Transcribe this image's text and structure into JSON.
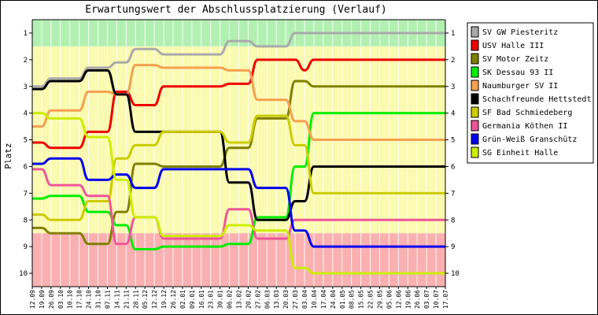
{
  "chart_data": {
    "type": "line",
    "title": "Erwartungswert der Abschlussplatzierung (Verlauf)",
    "ylabel": "Platz",
    "ylim": [
      10,
      1
    ],
    "yticks": [
      "1",
      "2",
      "3",
      "4",
      "5",
      "6",
      "7",
      "8",
      "9",
      "10"
    ],
    "zones": [
      {
        "from": 0.5,
        "to": 1.5,
        "color": "#b2f0b2"
      },
      {
        "from": 1.5,
        "to": 8.5,
        "color": "#fafab0"
      },
      {
        "from": 8.5,
        "to": 10.5,
        "color": "#fab0b0"
      }
    ],
    "x": [
      "12.09",
      "19.09",
      "26.09",
      "03.10",
      "10.10",
      "17.10",
      "24.10",
      "31.10",
      "07.11",
      "14.11",
      "21.11",
      "28.11",
      "05.12",
      "12.12",
      "19.12",
      "26.12",
      "02.01",
      "09.01",
      "16.01",
      "23.01",
      "30.01",
      "06.02",
      "13.02",
      "20.02",
      "27.02",
      "06.03",
      "13.03",
      "20.03",
      "27.03",
      "03.04",
      "10.04",
      "17.04",
      "24.04",
      "01.05",
      "08.05",
      "15.05",
      "22.05",
      "29.05",
      "05.06",
      "12.06",
      "19.06",
      "26.06",
      "03.07",
      "10.07",
      "17.07"
    ],
    "series": [
      {
        "name": "SV GW Piesteritz",
        "color": "#aaaaaa",
        "values": [
          3.0,
          3.0,
          2.7,
          2.7,
          2.7,
          2.7,
          2.3,
          2.3,
          2.3,
          2.1,
          2.1,
          1.6,
          1.6,
          1.6,
          1.8,
          1.8,
          1.8,
          1.8,
          1.8,
          1.8,
          1.8,
          1.3,
          1.3,
          1.3,
          1.5,
          1.5,
          1.5,
          1.5,
          1.0,
          1.0,
          1.0,
          1.0,
          1.0,
          1.0,
          1.0,
          1.0,
          1.0,
          1.0,
          1.0,
          1.0,
          1.0,
          1.0,
          1.0,
          1.0,
          1.0
        ]
      },
      {
        "name": "USV Halle III",
        "color": "#ee0000",
        "values": [
          5.1,
          5.1,
          5.3,
          5.3,
          5.3,
          5.3,
          4.7,
          4.7,
          4.7,
          3.2,
          3.2,
          3.7,
          3.7,
          3.7,
          3.0,
          3.0,
          3.0,
          3.0,
          3.0,
          3.0,
          3.0,
          2.9,
          2.9,
          2.9,
          2.0,
          2.0,
          2.0,
          2.0,
          2.0,
          2.4,
          2.0,
          2.0,
          2.0,
          2.0,
          2.0,
          2.0,
          2.0,
          2.0,
          2.0,
          2.0,
          2.0,
          2.0,
          2.0,
          2.0,
          2.0
        ]
      },
      {
        "name": "SV Motor Zeitz",
        "color": "#808000",
        "values": [
          8.3,
          8.3,
          8.5,
          8.5,
          8.5,
          8.5,
          8.9,
          8.9,
          8.9,
          7.7,
          7.7,
          5.9,
          5.9,
          5.9,
          6.0,
          6.0,
          6.0,
          6.0,
          6.0,
          6.0,
          6.0,
          5.3,
          5.3,
          5.3,
          4.2,
          4.2,
          4.2,
          4.2,
          2.8,
          2.8,
          3.0,
          3.0,
          3.0,
          3.0,
          3.0,
          3.0,
          3.0,
          3.0,
          3.0,
          3.0,
          3.0,
          3.0,
          3.0,
          3.0,
          3.0
        ]
      },
      {
        "name": "SK Dessau 93 II",
        "color": "#00ee00",
        "values": [
          7.2,
          7.2,
          7.1,
          7.1,
          7.1,
          7.1,
          7.7,
          7.7,
          7.7,
          8.2,
          8.2,
          9.1,
          9.1,
          9.1,
          9.0,
          9.0,
          9.0,
          9.0,
          9.0,
          9.0,
          9.0,
          8.9,
          8.9,
          8.9,
          7.9,
          7.9,
          7.9,
          7.9,
          6.0,
          6.0,
          4.0,
          4.0,
          4.0,
          4.0,
          4.0,
          4.0,
          4.0,
          4.0,
          4.0,
          4.0,
          4.0,
          4.0,
          4.0,
          4.0,
          4.0
        ]
      },
      {
        "name": "Naumburger SV II",
        "color": "#f5a050",
        "values": [
          4.5,
          4.5,
          3.9,
          3.9,
          3.9,
          3.9,
          3.2,
          3.2,
          3.2,
          3.3,
          3.3,
          2.2,
          2.2,
          2.2,
          2.3,
          2.3,
          2.3,
          2.3,
          2.3,
          2.3,
          2.3,
          2.4,
          2.4,
          2.4,
          3.5,
          3.5,
          3.5,
          3.5,
          4.3,
          4.3,
          5.0,
          5.0,
          5.0,
          5.0,
          5.0,
          5.0,
          5.0,
          5.0,
          5.0,
          5.0,
          5.0,
          5.0,
          5.0,
          5.0,
          5.0
        ]
      },
      {
        "name": "Schachfreunde Hettstedt",
        "color": "#000000",
        "values": [
          3.1,
          3.1,
          2.8,
          2.8,
          2.8,
          2.8,
          2.4,
          2.4,
          2.4,
          3.3,
          3.3,
          4.7,
          4.7,
          4.7,
          4.7,
          4.7,
          4.7,
          4.7,
          4.7,
          4.7,
          4.7,
          6.6,
          6.6,
          6.6,
          8.0,
          8.0,
          8.0,
          8.0,
          7.3,
          7.3,
          6.0,
          6.0,
          6.0,
          6.0,
          6.0,
          6.0,
          6.0,
          6.0,
          6.0,
          6.0,
          6.0,
          6.0,
          6.0,
          6.0,
          6.0
        ]
      },
      {
        "name": "SF Bad Schmiedeberg",
        "color": "#cccc00",
        "values": [
          7.8,
          7.8,
          8.0,
          8.0,
          8.0,
          8.0,
          7.3,
          7.3,
          7.3,
          5.7,
          5.7,
          5.2,
          5.2,
          5.2,
          4.7,
          4.7,
          4.7,
          4.7,
          4.7,
          4.7,
          4.7,
          5.1,
          5.1,
          5.1,
          4.1,
          4.1,
          4.1,
          4.1,
          5.2,
          5.2,
          7.0,
          7.0,
          7.0,
          7.0,
          7.0,
          7.0,
          7.0,
          7.0,
          7.0,
          7.0,
          7.0,
          7.0,
          7.0,
          7.0,
          7.0
        ]
      },
      {
        "name": "Germania Köthen II",
        "color": "#ee5599",
        "values": [
          6.1,
          6.1,
          6.7,
          6.7,
          6.7,
          6.7,
          7.1,
          7.1,
          7.1,
          8.9,
          8.9,
          7.9,
          7.9,
          7.9,
          8.7,
          8.7,
          8.7,
          8.7,
          8.7,
          8.7,
          8.7,
          7.6,
          7.6,
          7.6,
          8.7,
          8.7,
          8.7,
          8.7,
          8.0,
          8.0,
          8.0,
          8.0,
          8.0,
          8.0,
          8.0,
          8.0,
          8.0,
          8.0,
          8.0,
          8.0,
          8.0,
          8.0,
          8.0,
          8.0,
          8.0
        ]
      },
      {
        "name": "Grün-Weiß Granschütz",
        "color": "#0000ee",
        "values": [
          5.9,
          5.9,
          5.7,
          5.7,
          5.7,
          5.7,
          6.5,
          6.5,
          6.5,
          6.3,
          6.3,
          6.8,
          6.8,
          6.8,
          6.1,
          6.1,
          6.1,
          6.1,
          6.1,
          6.1,
          6.1,
          6.1,
          6.1,
          6.1,
          6.8,
          6.8,
          6.8,
          6.8,
          8.4,
          8.4,
          9.0,
          9.0,
          9.0,
          9.0,
          9.0,
          9.0,
          9.0,
          9.0,
          9.0,
          9.0,
          9.0,
          9.0,
          9.0,
          9.0,
          9.0
        ]
      },
      {
        "name": "SG Einheit Halle",
        "color": "#ccee00",
        "values": [
          4.0,
          4.0,
          4.2,
          4.2,
          4.2,
          4.2,
          4.9,
          4.9,
          4.9,
          6.5,
          6.5,
          7.9,
          7.9,
          7.9,
          8.6,
          8.6,
          8.6,
          8.6,
          8.6,
          8.6,
          8.6,
          8.2,
          8.2,
          8.2,
          8.4,
          8.4,
          8.4,
          8.4,
          9.8,
          9.8,
          10.0,
          10.0,
          10.0,
          10.0,
          10.0,
          10.0,
          10.0,
          10.0,
          10.0,
          10.0,
          10.0,
          10.0,
          10.0,
          10.0,
          10.0
        ]
      }
    ]
  }
}
